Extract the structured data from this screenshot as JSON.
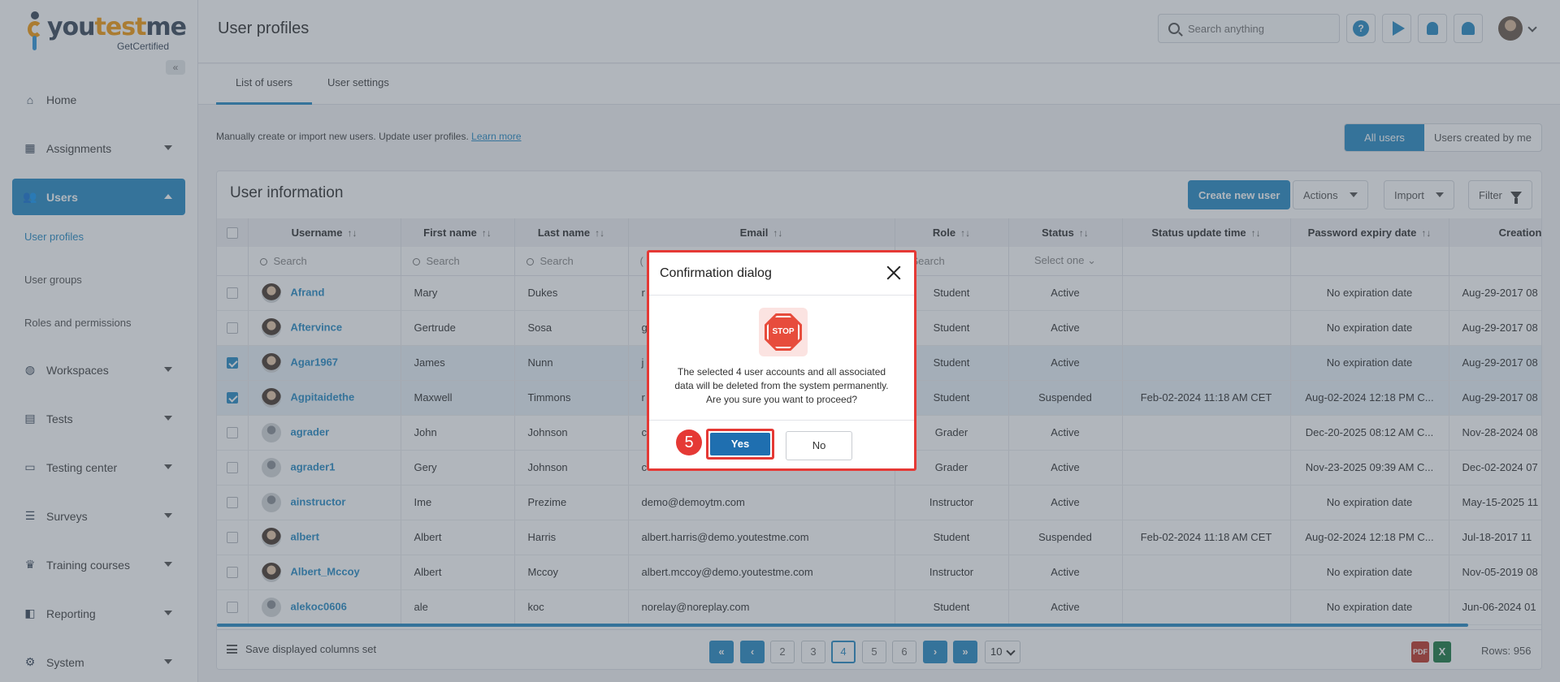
{
  "brand": {
    "name_prefix": "you",
    "name_accent": "test",
    "name_suffix": "me",
    "sub": "GetCertified"
  },
  "sidebar": {
    "items": [
      {
        "label": "Home",
        "icon": "home-icon"
      },
      {
        "label": "Assignments",
        "icon": "assignments-icon"
      },
      {
        "label": "Users",
        "icon": "users-icon"
      },
      {
        "label": "Workspaces",
        "icon": "globe-icon"
      },
      {
        "label": "Tests",
        "icon": "tests-icon"
      },
      {
        "label": "Testing center",
        "icon": "monitor-icon"
      },
      {
        "label": "Surveys",
        "icon": "surveys-icon"
      },
      {
        "label": "Training courses",
        "icon": "trophy-icon"
      },
      {
        "label": "Reporting",
        "icon": "reporting-icon"
      },
      {
        "label": "System",
        "icon": "gear-icon"
      }
    ],
    "sub_items": [
      "User profiles",
      "User groups",
      "Roles and permissions"
    ]
  },
  "header": {
    "title": "User profiles",
    "search_placeholder": "Search anything",
    "help_label": "?"
  },
  "tabs": [
    "List of users",
    "User settings"
  ],
  "intro": {
    "text": "Manually create or import new users. Update user profiles.",
    "link": "Learn more"
  },
  "toggle": {
    "all": "All users",
    "mine": "Users created by me"
  },
  "card": {
    "title": "User information",
    "create_btn": "Create new user",
    "actions_btn": "Actions",
    "import_btn": "Import",
    "filter_btn": "Filter"
  },
  "table": {
    "columns": [
      "Username",
      "First name",
      "Last name",
      "Email",
      "Role",
      "Status",
      "Status update time",
      "Password expiry date",
      "Creation t"
    ],
    "search_placeholder": "Search",
    "status_select": "Select one",
    "email_filter_fragment": "(",
    "sort_glyph": "↑↓",
    "rows": [
      {
        "username": "Afrand",
        "first": "Mary",
        "last": "Dukes",
        "email": "r",
        "role": "Student",
        "status": "Active",
        "status_time": "",
        "expiry": "No expiration date",
        "created": "Aug-29-2017 08",
        "selected": false,
        "avatar": "photo"
      },
      {
        "username": "Aftervince",
        "first": "Gertrude",
        "last": "Sosa",
        "email": "g",
        "role": "Student",
        "status": "Active",
        "status_time": "",
        "expiry": "No expiration date",
        "created": "Aug-29-2017 08",
        "selected": false,
        "avatar": "photo"
      },
      {
        "username": "Agar1967",
        "first": "James",
        "last": "Nunn",
        "email": "j",
        "role": "Student",
        "status": "Active",
        "status_time": "",
        "expiry": "No expiration date",
        "created": "Aug-29-2017 08",
        "selected": true,
        "avatar": "photo"
      },
      {
        "username": "Agpitaidethe",
        "first": "Maxwell",
        "last": "Timmons",
        "email": "r",
        "role": "Student",
        "status": "Suspended",
        "status_time": "Feb-02-2024 11:18 AM CET",
        "expiry": "Aug-02-2024 12:18 PM C...",
        "created": "Aug-29-2017 08",
        "selected": true,
        "avatar": "photo"
      },
      {
        "username": "agrader",
        "first": "John",
        "last": "Johnson",
        "email": "c",
        "role": "Grader",
        "status": "Active",
        "status_time": "",
        "expiry": "Dec-20-2025 08:12 AM C...",
        "created": "Nov-28-2024 08",
        "selected": false,
        "avatar": "generic"
      },
      {
        "username": "agrader1",
        "first": "Gery",
        "last": "Johnson",
        "email": "c",
        "role": "Grader",
        "status": "Active",
        "status_time": "",
        "expiry": "Nov-23-2025 09:39 AM C...",
        "created": "Dec-02-2024 07",
        "selected": false,
        "avatar": "generic"
      },
      {
        "username": "ainstructor",
        "first": "Ime",
        "last": "Prezime",
        "email": "demo@demoytm.com",
        "role": "Instructor",
        "status": "Active",
        "status_time": "",
        "expiry": "No expiration date",
        "created": "May-15-2025 11",
        "selected": false,
        "avatar": "generic"
      },
      {
        "username": "albert",
        "first": "Albert",
        "last": "Harris",
        "email": "albert.harris@demo.youtestme.com",
        "role": "Student",
        "status": "Suspended",
        "status_time": "Feb-02-2024 11:18 AM CET",
        "expiry": "Aug-02-2024 12:18 PM C...",
        "created": "Jul-18-2017 11",
        "selected": false,
        "avatar": "photo"
      },
      {
        "username": "Albert_Mccoy",
        "first": "Albert",
        "last": "Mccoy",
        "email": "albert.mccoy@demo.youtestme.com",
        "role": "Instructor",
        "status": "Active",
        "status_time": "",
        "expiry": "No expiration date",
        "created": "Nov-05-2019 08",
        "selected": false,
        "avatar": "photo"
      },
      {
        "username": "alekoc0606",
        "first": "ale",
        "last": "koc",
        "email": "norelay@noreplay.com",
        "role": "Student",
        "status": "Active",
        "status_time": "",
        "expiry": "No expiration date",
        "created": "Jun-06-2024 01",
        "selected": false,
        "avatar": "generic"
      }
    ]
  },
  "footer": {
    "save_columns": "Save displayed columns set",
    "pages": [
      "2",
      "3",
      "4",
      "5",
      "6"
    ],
    "current_page": "4",
    "page_size": "10",
    "pdf_label": "PDF",
    "xls_label": "X",
    "rows_label": "Rows: 956"
  },
  "dialog": {
    "title": "Confirmation dialog",
    "icon_text": "STOP",
    "message_line1": "The selected 4 user accounts and all associated",
    "message_line2": "data will be deleted from the system permanently.",
    "message_line3": "Are you sure you want to proceed?",
    "step": "5",
    "yes": "Yes",
    "no": "No"
  },
  "colors": {
    "accent": "#2a8cc4",
    "danger": "#e53935",
    "active": "#27a844"
  }
}
